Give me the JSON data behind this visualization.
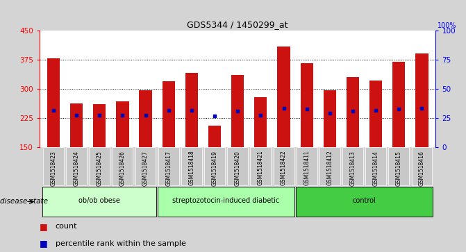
{
  "title": "GDS5344 / 1450299_at",
  "samples": [
    "GSM1518423",
    "GSM1518424",
    "GSM1518425",
    "GSM1518426",
    "GSM1518427",
    "GSM1518417",
    "GSM1518418",
    "GSM1518419",
    "GSM1518420",
    "GSM1518421",
    "GSM1518422",
    "GSM1518411",
    "GSM1518412",
    "GSM1518413",
    "GSM1518414",
    "GSM1518415",
    "GSM1518416"
  ],
  "counts": [
    378,
    263,
    260,
    268,
    296,
    320,
    340,
    205,
    335,
    278,
    408,
    365,
    297,
    330,
    322,
    370,
    390
  ],
  "percentile_ranks": [
    245,
    233,
    233,
    232,
    232,
    245,
    245,
    230,
    243,
    232,
    250,
    248,
    237,
    243,
    245,
    248,
    250
  ],
  "groups": [
    {
      "label": "ob/ob obese",
      "start": 0,
      "end": 5,
      "color": "#ccffcc"
    },
    {
      "label": "streptozotocin-induced diabetic",
      "start": 5,
      "end": 11,
      "color": "#aaffaa"
    },
    {
      "label": "control",
      "start": 11,
      "end": 17,
      "color": "#44cc44"
    }
  ],
  "bar_color": "#cc1111",
  "dot_color": "#0000bb",
  "ylim_left": [
    150,
    450
  ],
  "yticks_left": [
    150,
    225,
    300,
    375,
    450
  ],
  "yticks_right": [
    0,
    25,
    50,
    75,
    100
  ],
  "grid_values": [
    225,
    300,
    375
  ],
  "background_color": "#d4d4d4",
  "plot_bg": "#ffffff",
  "bar_width": 0.55,
  "bar_bottom": 150,
  "tick_label_bg": "#d4d4d4",
  "legend_bar_color": "#cc1111",
  "legend_dot_color": "#0000bb"
}
